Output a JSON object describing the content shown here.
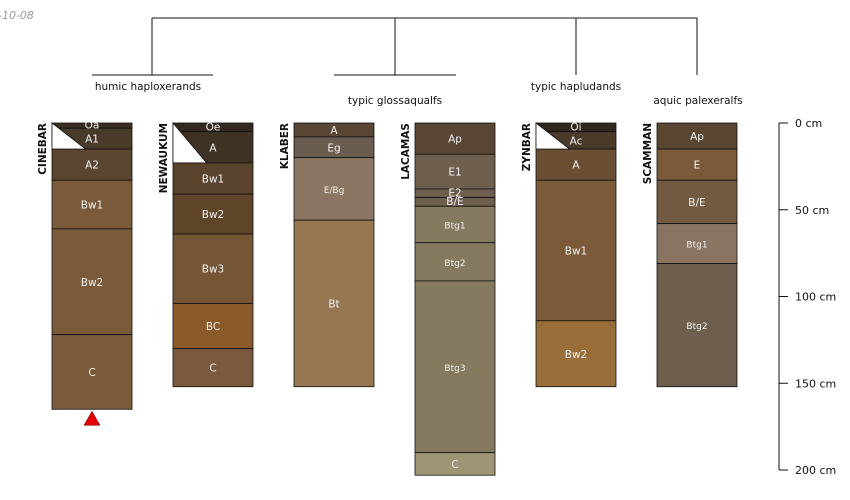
{
  "corner_label": "-10-08",
  "groups": [
    {
      "label": "humic haploxerands"
    },
    {
      "label": "typic glossaqualfs"
    },
    {
      "label": "typic hapludands"
    },
    {
      "label": "aquic palexeralfs"
    }
  ],
  "depth_scale": {
    "unit": "cm",
    "ticks": [
      {
        "depth": 0,
        "label": "0 cm"
      },
      {
        "depth": 50,
        "label": "50 cm"
      },
      {
        "depth": 100,
        "label": "100 cm"
      },
      {
        "depth": 150,
        "label": "150 cm"
      },
      {
        "depth": 200,
        "label": "200 cm"
      }
    ]
  },
  "profiles": [
    {
      "name": "CINEBAR",
      "bottom_marker": true,
      "horizons": [
        {
          "name": "Oa",
          "top": 0,
          "bottom": 3,
          "color": "#3a2f22"
        },
        {
          "name": "A1",
          "top": 3,
          "bottom": 15,
          "color": "#4a3a2a"
        },
        {
          "name": "A2",
          "top": 15,
          "bottom": 33,
          "color": "#5a4630"
        },
        {
          "name": "Bw1",
          "top": 33,
          "bottom": 61,
          "color": "#7a5a38"
        },
        {
          "name": "Bw2",
          "top": 61,
          "bottom": 122,
          "color": "#7a5a38"
        },
        {
          "name": "C",
          "top": 122,
          "bottom": 165,
          "color": "#7a5a38"
        }
      ]
    },
    {
      "name": "NEWAUKUM",
      "bottom_marker": false,
      "horizons": [
        {
          "name": "Oe",
          "top": 0,
          "bottom": 5,
          "color": "#33291f"
        },
        {
          "name": "A",
          "top": 5,
          "bottom": 23,
          "color": "#3e3225"
        },
        {
          "name": "Bw1",
          "top": 23,
          "bottom": 41,
          "color": "#5a432c"
        },
        {
          "name": "Bw2",
          "top": 41,
          "bottom": 64,
          "color": "#5e4428"
        },
        {
          "name": "Bw3",
          "top": 64,
          "bottom": 104,
          "color": "#745634"
        },
        {
          "name": "BC",
          "top": 104,
          "bottom": 130,
          "color": "#8a5a2a"
        },
        {
          "name": "C",
          "top": 130,
          "bottom": 152,
          "color": "#7a5a3e"
        }
      ]
    },
    {
      "name": "KLABER",
      "bottom_marker": false,
      "horizons": [
        {
          "name": "A",
          "top": 0,
          "bottom": 8,
          "color": "#5a4634"
        },
        {
          "name": "Eg",
          "top": 8,
          "bottom": 20,
          "color": "#6a5c4e"
        },
        {
          "name": "E/Bg",
          "top": 20,
          "bottom": 56,
          "color": "#8a7662"
        },
        {
          "name": "Bt",
          "top": 56,
          "bottom": 152,
          "color": "#957650"
        }
      ]
    },
    {
      "name": "LACAMAS",
      "bottom_marker": false,
      "horizons": [
        {
          "name": "Ap",
          "top": 0,
          "bottom": 18,
          "color": "#5a4634"
        },
        {
          "name": "E1",
          "top": 18,
          "bottom": 38,
          "color": "#6e5e4e"
        },
        {
          "name": "E2",
          "top": 38,
          "bottom": 43,
          "color": "#6e5e4e"
        },
        {
          "name": "B/E",
          "top": 43,
          "bottom": 48,
          "color": "#6e5e4e"
        },
        {
          "name": "Btg1",
          "top": 48,
          "bottom": 69,
          "color": "#857a60"
        },
        {
          "name": "Btg2",
          "top": 69,
          "bottom": 91,
          "color": "#857a60"
        },
        {
          "name": "Btg3",
          "top": 91,
          "bottom": 190,
          "color": "#857a60"
        },
        {
          "name": "C",
          "top": 190,
          "bottom": 203,
          "color": "#9e9476"
        }
      ]
    },
    {
      "name": "ZYNBAR",
      "bottom_marker": false,
      "horizons": [
        {
          "name": "Oi",
          "top": 0,
          "bottom": 5,
          "color": "#2f261c"
        },
        {
          "name": "Ac",
          "top": 5,
          "bottom": 15,
          "color": "#4a3a2a"
        },
        {
          "name": "A",
          "top": 15,
          "bottom": 33,
          "color": "#6a4e34"
        },
        {
          "name": "Bw1",
          "top": 33,
          "bottom": 114,
          "color": "#7a5a38"
        },
        {
          "name": "Bw2",
          "top": 114,
          "bottom": 152,
          "color": "#9a6e38"
        }
      ]
    },
    {
      "name": "SCAMMAN",
      "bottom_marker": false,
      "horizons": [
        {
          "name": "Ap",
          "top": 0,
          "bottom": 15,
          "color": "#5a4630"
        },
        {
          "name": "E",
          "top": 15,
          "bottom": 33,
          "color": "#7a5a38"
        },
        {
          "name": "B/E",
          "top": 33,
          "bottom": 58,
          "color": "#725a42"
        },
        {
          "name": "Btg1",
          "top": 58,
          "bottom": 81,
          "color": "#8a7462"
        },
        {
          "name": "Btg2",
          "top": 81,
          "bottom": 152,
          "color": "#6e5e4e"
        }
      ]
    }
  ]
}
